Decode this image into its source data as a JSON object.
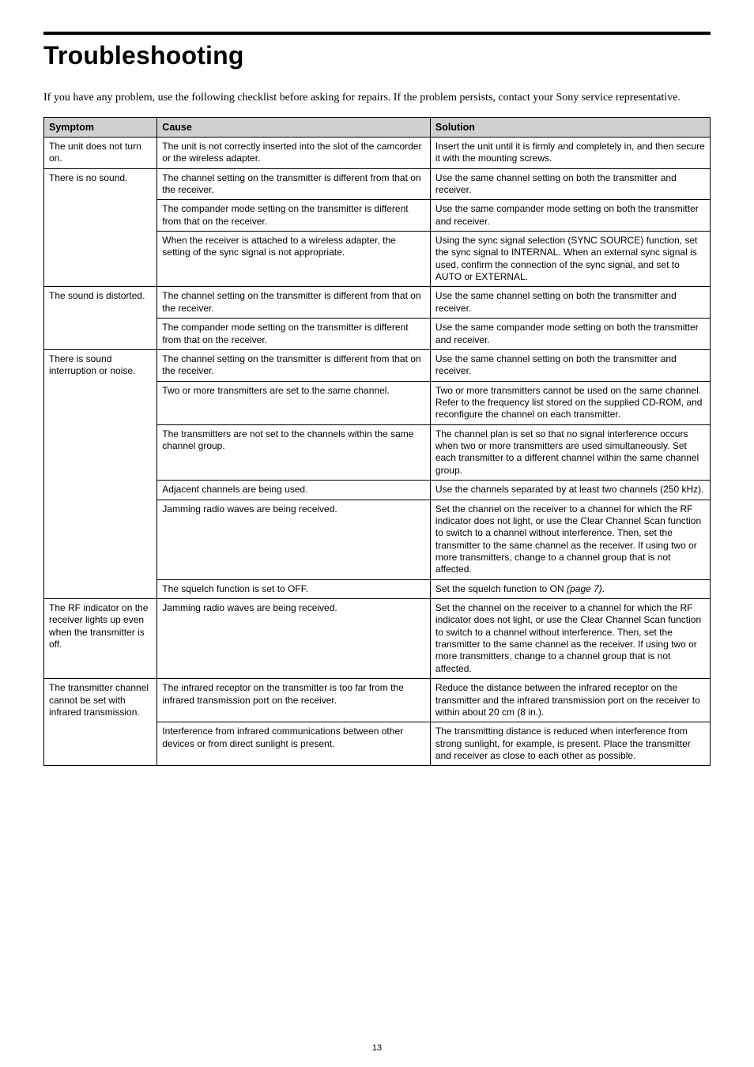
{
  "pageTitle": "Troubleshooting",
  "intro": "If you have any problem, use the following checklist before asking for repairs. If the problem persists, contact your Sony service representative.",
  "headers": {
    "symptom": "Symptom",
    "cause": "Cause",
    "solution": "Solution"
  },
  "pageNumber": "13",
  "styles": {
    "headerBg": "#d0d0d0",
    "borderColor": "#000000",
    "bodyFontSize": 12,
    "titleFontSize": 32
  },
  "columns": {
    "symptomPct": 17,
    "causePct": 41,
    "solutionPct": 42
  },
  "rows": [
    {
      "symptom": "The unit does not turn on.",
      "items": [
        {
          "cause": "The unit is not correctly inserted into the slot of the camcorder or the wireless adapter.",
          "solution": "Insert the unit until it is firmly and completely in, and then secure it with the mounting screws."
        }
      ]
    },
    {
      "symptom": "There is no sound.",
      "items": [
        {
          "cause": "The channel setting on the transmitter is different from that on the receiver.",
          "solution": "Use the same channel setting on both the transmitter and receiver."
        },
        {
          "cause": "The compander mode setting on the transmitter is different from that on the receiver.",
          "solution": "Use the same compander mode setting on both the transmitter and receiver."
        },
        {
          "cause": "When the receiver is attached to a wireless adapter, the setting of the sync signal is not appropriate.",
          "solution": "Using the sync signal selection (SYNC SOURCE) function, set the sync signal to INTERNAL. When an external sync signal is used, confirm the connection of the sync signal, and set to AUTO or EXTERNAL."
        }
      ]
    },
    {
      "symptom": "The sound is distorted.",
      "items": [
        {
          "cause": "The channel setting on the transmitter is different from that on the receiver.",
          "solution": "Use the same channel setting on both the transmitter and receiver."
        },
        {
          "cause": "The compander mode setting on the transmitter is different from that on the receiver.",
          "solution": "Use the same compander mode setting on both the transmitter and receiver."
        }
      ]
    },
    {
      "symptom": "There is sound interruption or noise.",
      "items": [
        {
          "cause": "The channel setting on the transmitter is different from that on the receiver.",
          "solution": "Use the same channel setting on both the transmitter and receiver."
        },
        {
          "cause": "Two or more transmitters are set to the same channel.",
          "solution": "Two or more transmitters cannot be used on the same channel. Refer to the frequency list stored on the supplied CD-ROM, and reconfigure the channel on each transmitter."
        },
        {
          "cause": "The transmitters are not set to the channels within the same channel group.",
          "solution": "The channel plan is set so that no signal interference occurs when two or more transmitters are used simultaneously. Set each transmitter to a different channel within the same channel group."
        },
        {
          "cause": "Adjacent channels are being used.",
          "solution": "Use the channels separated by at least two channels (250 kHz)."
        },
        {
          "cause": "Jamming radio waves are being received.",
          "solution": "Set the channel on the receiver to a channel for which the RF indicator does not light, or use the Clear Channel Scan function to switch to a channel without interference. Then, set the transmitter to the same channel as the receiver. If using two or more transmitters, change to a channel group that is not affected."
        },
        {
          "cause": "The squelch function is set to OFF.",
          "solution_pre": "Set the squelch function to ON ",
          "solution_italic": "(page 7)",
          "solution_post": "."
        }
      ]
    },
    {
      "symptom": "The RF indicator on the receiver lights up even when the transmitter is off.",
      "items": [
        {
          "cause": "Jamming radio waves are being received.",
          "solution": "Set the channel on the receiver to a channel for which the RF indicator does not light, or use the Clear Channel Scan function to switch to a channel without interference. Then, set the transmitter to the same channel as the receiver. If using two or more transmitters, change to a channel group that is not affected."
        }
      ]
    },
    {
      "symptom": "The transmitter channel cannot be set with infrared transmission.",
      "items": [
        {
          "cause": "The infrared receptor on the transmitter is too far from the infrared transmission port on the receiver.",
          "solution": "Reduce the distance between the infrared receptor on the transmitter and the infrared transmission port on the receiver to within about 20 cm (8 in.)."
        },
        {
          "cause": "Interference from infrared communications between other devices or from direct sunlight is present.",
          "solution": "The transmitting distance is reduced when interference from strong sunlight, for example, is present. Place the transmitter and receiver as close to each other as possible."
        }
      ]
    }
  ]
}
